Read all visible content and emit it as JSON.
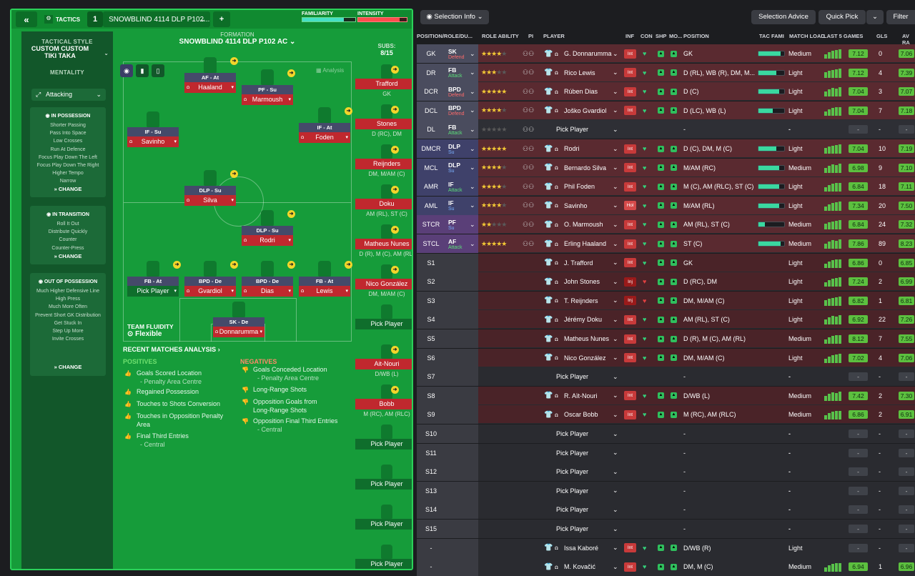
{
  "topbar": {
    "tactics_label": "TACTICS",
    "slot": "1",
    "tactic_name": "SNOWBLIND 4114 DLP P102...",
    "familiarity": "FAMILIARITY",
    "intensity": "INTENSITY",
    "familiarity_pct": 0.78,
    "intensity_pct": 0.85
  },
  "style": {
    "label": "TACTICAL STYLE",
    "name": "CUSTOM CUSTOM TIKI TAKA",
    "mentality_label": "MENTALITY",
    "mentality": "Attacking",
    "in_possession": {
      "title": "IN POSSESSION",
      "items": [
        "Shorter Passing",
        "Pass Into Space",
        "Low Crosses",
        "Run At Defence",
        "Focus Play Down The Left",
        "Focus Play Down The Right",
        "Higher Tempo",
        "Narrow"
      ]
    },
    "in_transition": {
      "title": "IN TRANSITION",
      "items": [
        "Roll It Out",
        "Distribute Quickly",
        "Counter",
        "Counter-Press"
      ]
    },
    "out_possession": {
      "title": "OUT OF POSSESSION",
      "items": [
        "Much Higher Defensive Line",
        "High Press",
        "Much More Often",
        "Prevent Short GK Distribution",
        "Get Stuck In",
        "Step Up More",
        "Invite Crosses"
      ]
    },
    "change": "CHANGE"
  },
  "formation": {
    "label": "FORMATION",
    "name": "SNOWBLIND 4114 DLP P102 AC",
    "analysis": "Analysis",
    "fluidity_label": "TEAM FLUIDITY",
    "fluidity": "Flexible",
    "players": [
      {
        "role": "AF - At",
        "name": "Haaland"
      },
      {
        "role": "PF - Su",
        "name": "Marmoush"
      },
      {
        "role": "IF - Su",
        "name": "Savinho"
      },
      {
        "role": "IF - At",
        "name": "Foden"
      },
      {
        "role": "DLP - Su",
        "name": "Silva"
      },
      {
        "role": "DLP - Su",
        "name": "Rodri"
      },
      {
        "role": "FB - At",
        "name": "Pick Player"
      },
      {
        "role": "BPD - De",
        "name": "Gvardiol"
      },
      {
        "role": "BPD - De",
        "name": "Dias"
      },
      {
        "role": "FB - At",
        "name": "Lewis"
      },
      {
        "role": "SK - De",
        "name": "Donnarumma"
      }
    ]
  },
  "subs": {
    "label": "SUBS:",
    "count": "8/15",
    "list": [
      {
        "name": "Trafford",
        "pos": "GK"
      },
      {
        "name": "Stones",
        "pos": "D (RC), DM"
      },
      {
        "name": "Reijnders",
        "pos": "DM, M/AM (C)"
      },
      {
        "name": "Doku",
        "pos": "AM (RL), ST (C)"
      },
      {
        "name": "Matheus Nunes",
        "pos": "D (R), M (C), AM (RL)"
      },
      {
        "name": "Nico González",
        "pos": "DM, M/AM (C)"
      },
      {
        "name": "Pick Player",
        "pos": ""
      },
      {
        "name": "Ait-Nouri",
        "pos": "D/WB (L)"
      },
      {
        "name": "Bobb",
        "pos": "M (RC), AM (RLC)"
      },
      {
        "name": "Pick Player",
        "pos": ""
      },
      {
        "name": "Pick Player",
        "pos": ""
      },
      {
        "name": "Pick Player",
        "pos": ""
      },
      {
        "name": "Pick Player",
        "pos": ""
      }
    ]
  },
  "analysis": {
    "title": "RECENT MATCHES ANALYSIS",
    "positives": "POSITIVES",
    "negatives": "NEGATIVES",
    "pos_items": [
      "Goals Scored Location",
      "- Penalty Area Centre",
      "Regained Possession",
      "Touches to Shots Conversion",
      "Touches in Opposition Penalty",
      "Area",
      "Final Third Entries",
      "- Central"
    ],
    "neg_items": [
      "Goals Conceded Location",
      "- Penalty Area Centre",
      "Long-Range Shots",
      "Opposition Goals from",
      "Long-Range Shots",
      "Opposition Final Third Entries",
      "- Central"
    ]
  },
  "right": {
    "selection_info": "Selection Info",
    "selection_advice": "Selection Advice",
    "quick_pick": "Quick Pick",
    "filter": "Filter",
    "headers": [
      "POSITION/ROLE/DU...",
      "ROLE ABILITY",
      "PI",
      "PLAYER",
      "INF",
      "CON",
      "SHP",
      "MO...",
      "POSITION",
      "TAC FAMI",
      "MATCH LOAD",
      "LAST 5 GAMES",
      "GLS",
      "AV RA"
    ],
    "rows": [
      {
        "pos": "GK",
        "role": "SK",
        "duty": "Defend",
        "stars": 4,
        "player": "G. Donnarumma",
        "inf": "Int",
        "position": "GK",
        "fam": 0.85,
        "load": "Medium",
        "rat": "7.12",
        "gls": "0",
        "avr": "7.06"
      },
      {
        "pos": "DR",
        "role": "FB",
        "duty": "Attack",
        "stars": 3,
        "player": "Rico Lewis",
        "inf": "Int",
        "position": "D (RL), WB (R), DM, M...",
        "fam": 0.7,
        "load": "Light",
        "rat": "7.12",
        "gls": "4",
        "avr": "7.39"
      },
      {
        "pos": "DCR",
        "role": "BPD",
        "duty": "Defend",
        "stars": 4.5,
        "player": "Rúben Dias",
        "inf": "Int",
        "position": "D (C)",
        "fam": 0.8,
        "load": "Light",
        "rat": "7.04",
        "gls": "3",
        "avr": "7.07"
      },
      {
        "pos": "DCL",
        "role": "BPD",
        "duty": "Defend",
        "stars": 4,
        "player": "Joško Gvardiol",
        "inf": "Int",
        "position": "D (LC), WB (L)",
        "fam": 0.55,
        "load": "Light",
        "rat": "7.04",
        "gls": "7",
        "avr": "7.18"
      },
      {
        "pos": "DL",
        "role": "FB",
        "duty": "Attack",
        "stars": 0,
        "player": "Pick Player",
        "inf": "",
        "position": "-",
        "fam": 0,
        "load": "-",
        "rat": "-",
        "gls": "-",
        "avr": "-"
      },
      {
        "pos": "DMCR",
        "role": "DLP",
        "duty": "Su",
        "stars": 4.5,
        "player": "Rodri",
        "inf": "Int",
        "position": "D (C), DM, M (C)",
        "fam": 0.7,
        "load": "Light",
        "rat": "7.04",
        "gls": "10",
        "avr": "7.19"
      },
      {
        "pos": "MCL",
        "role": "DLP",
        "duty": "Su",
        "stars": 4,
        "player": "Bernardo Silva",
        "inf": "Int",
        "position": "M/AM (RC)",
        "fam": 0.8,
        "load": "Medium",
        "rat": "6.98",
        "gls": "9",
        "avr": "7.10"
      },
      {
        "pos": "AMR",
        "role": "IF",
        "duty": "Attack",
        "stars": 4,
        "player": "Phil Foden",
        "inf": "Int",
        "position": "M (C), AM (RLC), ST (C)",
        "fam": 0.8,
        "load": "Light",
        "rat": "6.84",
        "gls": "18",
        "avr": "7.11"
      },
      {
        "pos": "AML",
        "role": "IF",
        "duty": "Su",
        "stars": 4,
        "player": "Savinho",
        "inf": "Hol",
        "position": "M/AM (RL)",
        "fam": 0.8,
        "load": "Light",
        "rat": "7.34",
        "gls": "20",
        "avr": "7.50"
      },
      {
        "pos": "STCR",
        "role": "PF",
        "duty": "Su",
        "stars": 2,
        "player": "O. Marmoush",
        "inf": "Int",
        "position": "AM (RL), ST (C)",
        "fam": 0.25,
        "load": "Medium",
        "rat": "6.84",
        "gls": "24",
        "avr": "7.32"
      },
      {
        "pos": "STCL",
        "role": "AF",
        "duty": "Attack",
        "stars": 5,
        "player": "Erling Haaland",
        "inf": "Int",
        "position": "ST (C)",
        "fam": 0.85,
        "load": "Medium",
        "rat": "7.86",
        "gls": "89",
        "avr": "8.23"
      },
      {
        "pos": "S1",
        "role": "",
        "duty": "",
        "stars": 0,
        "player": "J. Trafford",
        "inf": "Int",
        "position": "GK",
        "fam": 0,
        "load": "Light",
        "rat": "6.86",
        "gls": "0",
        "avr": "6.85"
      },
      {
        "pos": "S2",
        "role": "",
        "duty": "",
        "stars": 0,
        "player": "John Stones",
        "inf": "Inj",
        "position": "D (RC), DM",
        "fam": 0,
        "load": "Light",
        "rat": "7.24",
        "gls": "2",
        "avr": "6.99"
      },
      {
        "pos": "S3",
        "role": "",
        "duty": "",
        "stars": 0,
        "player": "T. Reijnders",
        "inf": "Inj",
        "position": "DM, M/AM (C)",
        "fam": 0,
        "load": "Light",
        "rat": "6.82",
        "gls": "1",
        "avr": "6.81"
      },
      {
        "pos": "S4",
        "role": "",
        "duty": "",
        "stars": 0,
        "player": "Jérémy Doku",
        "inf": "Int",
        "position": "AM (RL), ST (C)",
        "fam": 0,
        "load": "Light",
        "rat": "6.92",
        "gls": "22",
        "avr": "7.26"
      },
      {
        "pos": "S5",
        "role": "",
        "duty": "",
        "stars": 0,
        "player": "Matheus Nunes",
        "inf": "Int",
        "position": "D (R), M (C), AM (RL)",
        "fam": 0,
        "load": "Medium",
        "rat": "8.12",
        "gls": "7",
        "avr": "7.55"
      },
      {
        "pos": "S6",
        "role": "",
        "duty": "",
        "stars": 0,
        "player": "Nico González",
        "inf": "Int",
        "position": "DM, M/AM (C)",
        "fam": 0,
        "load": "Light",
        "rat": "7.02",
        "gls": "4",
        "avr": "7.06"
      },
      {
        "pos": "S7",
        "role": "",
        "duty": "",
        "stars": 0,
        "player": "Pick Player",
        "inf": "",
        "position": "-",
        "fam": 0,
        "load": "-",
        "rat": "-",
        "gls": "-",
        "avr": "-"
      },
      {
        "pos": "S8",
        "role": "",
        "duty": "",
        "stars": 0,
        "player": "R. Aït-Nouri",
        "inf": "Int",
        "position": "D/WB (L)",
        "fam": 0,
        "load": "Medium",
        "rat": "7.42",
        "gls": "2",
        "avr": "7.30"
      },
      {
        "pos": "S9",
        "role": "",
        "duty": "",
        "stars": 0,
        "player": "Oscar Bobb",
        "inf": "Int",
        "position": "M (RC), AM (RLC)",
        "fam": 0,
        "load": "Medium",
        "rat": "6.86",
        "gls": "2",
        "avr": "6.91"
      },
      {
        "pos": "S10",
        "role": "",
        "duty": "",
        "stars": 0,
        "player": "Pick Player",
        "inf": "",
        "position": "-",
        "fam": 0,
        "load": "-",
        "rat": "-",
        "gls": "-",
        "avr": "-"
      },
      {
        "pos": "S11",
        "role": "",
        "duty": "",
        "stars": 0,
        "player": "Pick Player",
        "inf": "",
        "position": "-",
        "fam": 0,
        "load": "-",
        "rat": "-",
        "gls": "-",
        "avr": "-"
      },
      {
        "pos": "S12",
        "role": "",
        "duty": "",
        "stars": 0,
        "player": "Pick Player",
        "inf": "",
        "position": "-",
        "fam": 0,
        "load": "-",
        "rat": "-",
        "gls": "-",
        "avr": "-"
      },
      {
        "pos": "S13",
        "role": "",
        "duty": "",
        "stars": 0,
        "player": "Pick Player",
        "inf": "",
        "position": "-",
        "fam": 0,
        "load": "-",
        "rat": "-",
        "gls": "-",
        "avr": "-"
      },
      {
        "pos": "S14",
        "role": "",
        "duty": "",
        "stars": 0,
        "player": "Pick Player",
        "inf": "",
        "position": "-",
        "fam": 0,
        "load": "-",
        "rat": "-",
        "gls": "-",
        "avr": "-"
      },
      {
        "pos": "S15",
        "role": "",
        "duty": "",
        "stars": 0,
        "player": "Pick Player",
        "inf": "",
        "position": "-",
        "fam": 0,
        "load": "-",
        "rat": "-",
        "gls": "-",
        "avr": "-"
      },
      {
        "pos": "-",
        "role": "",
        "duty": "",
        "stars": 0,
        "player": "Issa Kaboré",
        "inf": "Int",
        "position": "D/WB (R)",
        "fam": 0,
        "load": "Light",
        "rat": "-",
        "gls": "-",
        "avr": "-"
      },
      {
        "pos": "-",
        "role": "",
        "duty": "",
        "stars": 0,
        "player": "M. Kovačić",
        "inf": "Int",
        "position": "DM, M (C)",
        "fam": 0,
        "load": "Medium",
        "rat": "6.94",
        "gls": "1",
        "avr": "6.96"
      }
    ]
  }
}
